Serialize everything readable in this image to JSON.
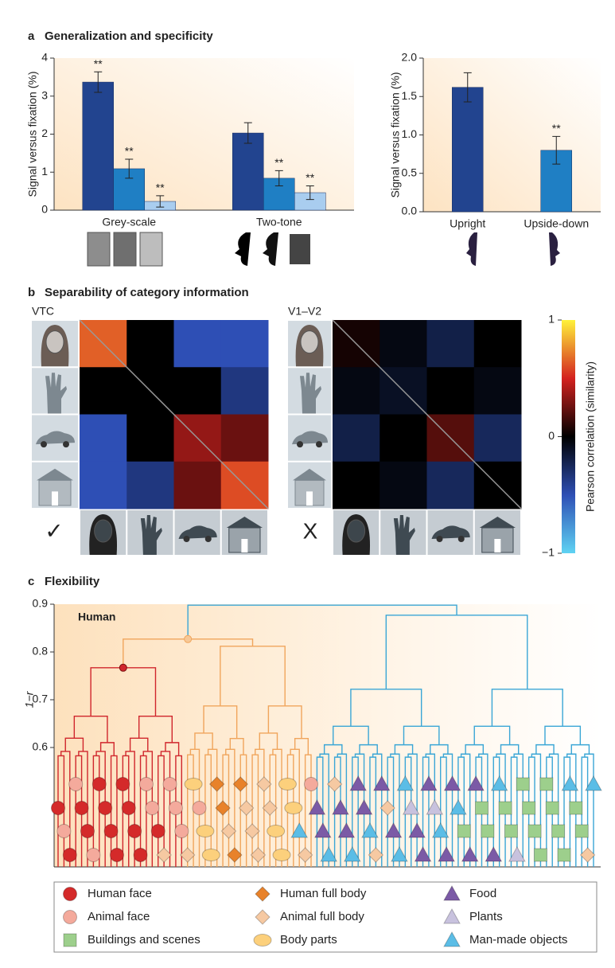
{
  "panels": [
    {
      "label": "a",
      "title": "Generalization and specificity"
    },
    {
      "label": "b",
      "title": "Separability of category information"
    },
    {
      "label": "c",
      "title": "Flexibility"
    }
  ],
  "chart_data": [
    {
      "type": "bar",
      "ylabel": "Signal versus fixation (%)",
      "categories": [
        "Grey-scale",
        "Two-tone"
      ],
      "series": [
        {
          "color": "#22448f",
          "values": [
            3.37,
            2.03
          ],
          "errors": [
            0.27,
            0.27
          ],
          "significance": [
            "**",
            null
          ]
        },
        {
          "color": "#1f7fc4",
          "values": [
            1.09,
            0.84
          ],
          "errors": [
            0.25,
            0.2
          ],
          "significance": [
            "**",
            "**"
          ]
        },
        {
          "color": "#a9cdef",
          "values": [
            0.23,
            0.46
          ],
          "errors": [
            0.15,
            0.18
          ],
          "significance": [
            "**",
            "**"
          ]
        }
      ],
      "ylim": [
        0,
        4
      ],
      "yticks": [
        0,
        1,
        2,
        3,
        4
      ]
    },
    {
      "type": "bar",
      "ylabel": "Signal versus fixation (%)",
      "categories": [
        "Upright",
        "Upside-down"
      ],
      "series": [
        {
          "colors": [
            "#22448f",
            "#1f7fc4"
          ],
          "values": [
            1.62,
            0.8
          ],
          "errors": [
            0.19,
            0.18
          ],
          "significance": [
            null,
            "**"
          ]
        }
      ],
      "ylim": [
        0,
        2
      ],
      "yticks": [
        {
          "value": 0,
          "label": "0.0"
        },
        0.5,
        {
          "value": 1,
          "label": "1.0"
        },
        1.5,
        {
          "value": 2,
          "label": "2.0"
        }
      ]
    },
    {
      "type": "heatmap",
      "title": "VTC",
      "verdict": "✓",
      "matrix": [
        [
          0.65,
          0,
          -0.5,
          -0.5
        ],
        [
          0,
          0,
          0,
          -0.35
        ],
        [
          -0.5,
          0,
          0.35,
          0.25
        ],
        [
          -0.5,
          -0.35,
          0.25,
          0.6
        ]
      ]
    },
    {
      "type": "heatmap",
      "title": "V1–V2",
      "verdict": "X",
      "matrix": [
        [
          0.05,
          -0.05,
          -0.2,
          0
        ],
        [
          -0.05,
          -0.1,
          0,
          -0.05
        ],
        [
          -0.2,
          0,
          0.2,
          -0.25
        ],
        [
          0,
          -0.05,
          -0.25,
          0
        ]
      ]
    },
    {
      "type": "colorbar",
      "ylabel": "Pearson correlation (similarity)",
      "ylim": [
        -1,
        1
      ],
      "yticks": [
        {
          "value": -1,
          "label": "−1"
        },
        0,
        1
      ],
      "colormap": [
        "#5fd3f3",
        "#2e4fb5",
        "#000000",
        "#d4221f",
        "#fff23a"
      ]
    },
    {
      "type": "dendrogram",
      "annotation": "Human",
      "ylabel": "1−r",
      "ylim": [
        0.35,
        0.9
      ],
      "yticks": [
        0.6,
        0.7,
        0.8,
        0.9
      ],
      "clusters": [
        {
          "start": 0,
          "end": 21,
          "height": 0.767,
          "color": "#d0262c"
        },
        {
          "start": 22,
          "end": 43,
          "height": 0.812,
          "color": "#f0a55c"
        },
        {
          "start": 44,
          "end": 91,
          "height": 0.877,
          "color": "#3aa6d6"
        }
      ],
      "join_heights": [
        0.827,
        0.898
      ],
      "leaves": [
        "Human face",
        "Animal face",
        "Human face",
        "Animal face",
        "Human face",
        "Human face",
        "Animal face",
        "Human face",
        "Human face",
        "Human face",
        "Human face",
        "Human face",
        "Human face",
        "Human face",
        "Human face",
        "Animal face",
        "Animal face",
        "Human face",
        "Animal full body",
        "Animal face",
        "Animal face",
        "Animal face",
        "Animal full body",
        "Body parts",
        "Animal face",
        "Body parts",
        "Body parts",
        "Human full body",
        "Human full body",
        "Animal full body",
        "Human full body",
        "Human full body",
        "Animal full body",
        "Animal full body",
        "Animal full body",
        "Animal full body",
        "Animal full body",
        "Body parts",
        "Body parts",
        "Body parts",
        "Body parts",
        "Man-made objects",
        "Animal full body",
        "Animal face",
        "Food",
        "Food",
        "Man-made objects",
        "Animal full body",
        "Food",
        "Food",
        "Man-made objects",
        "Food",
        "Food",
        "Man-made objects",
        "Animal full body",
        "Food",
        "Animal full body",
        "Food",
        "Man-made objects",
        "Man-made objects",
        "Plants",
        "Food",
        "Food",
        "Food",
        "Plants",
        "Man-made objects",
        "Food",
        "Food",
        "Man-made objects",
        "Buildings and scenes",
        "Food",
        "Food",
        "Buildings and scenes",
        "Buildings and scenes",
        "Food",
        "Man-made objects",
        "Buildings and scenes",
        "Buildings and scenes",
        "Plants",
        "Buildings and scenes",
        "Buildings and scenes",
        "Buildings and scenes",
        "Buildings and scenes",
        "Buildings and scenes",
        "Buildings and scenes",
        "Buildings and scenes",
        "Buildings and scenes",
        "Man-made objects",
        "Buildings and scenes",
        "Buildings and scenes",
        "Animal full body",
        "Man-made objects"
      ],
      "legend": [
        {
          "name": "Human face",
          "color": "#d42a2a",
          "shape": "circle"
        },
        {
          "name": "Animal face",
          "color": "#f4aa9c",
          "shape": "circle"
        },
        {
          "name": "Buildings and scenes",
          "color": "#9dcf8c",
          "shape": "square"
        },
        {
          "name": "Human full body",
          "color": "#e8822a",
          "shape": "diamond"
        },
        {
          "name": "Animal full body",
          "color": "#f6c9a2",
          "shape": "diamond"
        },
        {
          "name": "Body parts",
          "color": "#fcd07c",
          "shape": "ellipse"
        },
        {
          "name": "Food",
          "color": "#7b5aa6",
          "shape": "triangle"
        },
        {
          "name": "Plants",
          "color": "#c8c2de",
          "shape": "triangle"
        },
        {
          "name": "Man-made objects",
          "color": "#5bbde6",
          "shape": "triangle"
        }
      ]
    }
  ]
}
